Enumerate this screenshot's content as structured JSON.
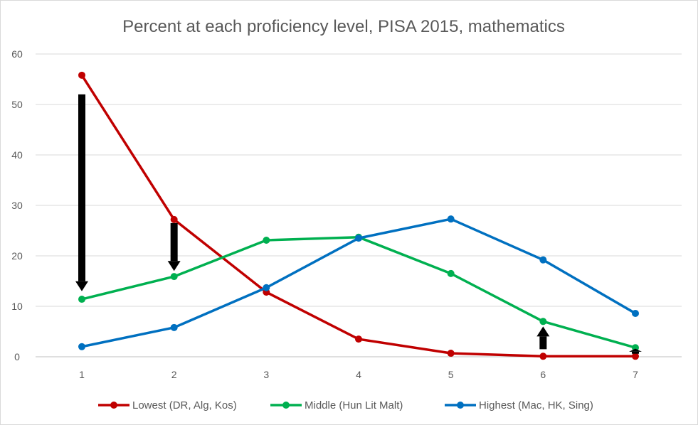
{
  "chart_data": {
    "type": "line",
    "title": "Percent at each proficiency level, PISA 2015, mathematics",
    "xlabel": "",
    "ylabel": "",
    "categories": [
      "1",
      "2",
      "3",
      "4",
      "5",
      "6",
      "7"
    ],
    "ylim": [
      0,
      60
    ],
    "yticks": [
      "0",
      "10",
      "20",
      "30",
      "40",
      "50",
      "60"
    ],
    "grid": true,
    "legend_position": "bottom",
    "series": [
      {
        "name": "Lowest (DR, Alg, Kos)",
        "color": "#C00000",
        "values": [
          55.8,
          27.2,
          12.8,
          3.5,
          0.7,
          0.1,
          0.1
        ]
      },
      {
        "name": "Middle (Hun Lit Malt)",
        "color": "#00B050",
        "values": [
          11.4,
          15.9,
          23.1,
          23.7,
          16.5,
          7.0,
          1.8
        ]
      },
      {
        "name": "Highest (Mac, HK, Sing)",
        "color": "#0070C0",
        "values": [
          2.0,
          5.8,
          13.7,
          23.5,
          27.3,
          19.2,
          8.6
        ]
      }
    ],
    "annotations": [
      {
        "type": "arrow",
        "x": "1",
        "from": 52,
        "to": 13,
        "color": "#000000"
      },
      {
        "type": "arrow",
        "x": "2",
        "from": 26.5,
        "to": 17,
        "color": "#000000"
      },
      {
        "type": "arrow",
        "x": "6",
        "from": 1.5,
        "to": 6,
        "color": "#000000"
      },
      {
        "type": "arrow",
        "x": "7",
        "from": 0.6,
        "to": 1.6,
        "color": "#000000"
      }
    ]
  }
}
